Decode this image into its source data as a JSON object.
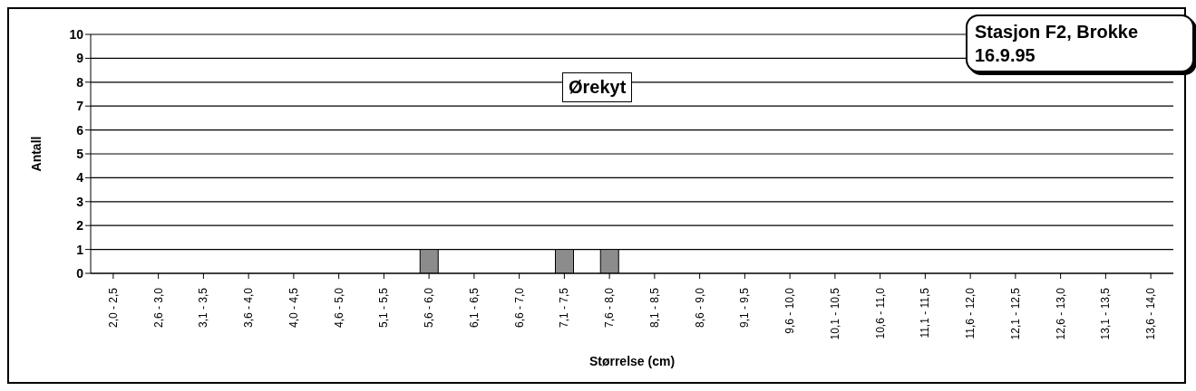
{
  "chart_data": {
    "type": "bar",
    "title": "Ørekyt",
    "annotations": [
      "Stasjon F2, Brokke",
      "16.9.95"
    ],
    "xlabel": "Størrelse (cm)",
    "ylabel": "Antall",
    "categories": [
      "2,0 - 2,5",
      "2,6 - 3,0",
      "3,1 - 3,5",
      "3,6 - 4,0",
      "4,0 - 4,5",
      "4,6 - 5,0",
      "5,1 - 5,5",
      "5,6 - 6,0",
      "6,1 - 6,5",
      "6,6 - 7,0",
      "7,1 - 7,5",
      "7,6 - 8,0",
      "8,1 - 8,5",
      "8,6 - 9,0",
      "9,1 - 9,5",
      "9,6 - 10,0",
      "10,1 - 10,5",
      "10,6 - 11,0",
      "11,1 - 11,5",
      "11,6 - 12,0",
      "12,1 - 12,5",
      "12,6 - 13,0",
      "13,1 - 13,5",
      "13,6 - 14,0"
    ],
    "values": [
      0,
      0,
      0,
      0,
      0,
      0,
      0,
      1,
      0,
      0,
      1,
      1,
      0,
      0,
      0,
      0,
      0,
      0,
      0,
      0,
      0,
      0,
      0,
      0
    ],
    "color": "#8c8c8c",
    "ylim": [
      0,
      10
    ],
    "yticks": [
      0,
      1,
      2,
      3,
      4,
      5,
      6,
      7,
      8,
      9,
      10
    ],
    "grid": "y",
    "legend": false
  }
}
